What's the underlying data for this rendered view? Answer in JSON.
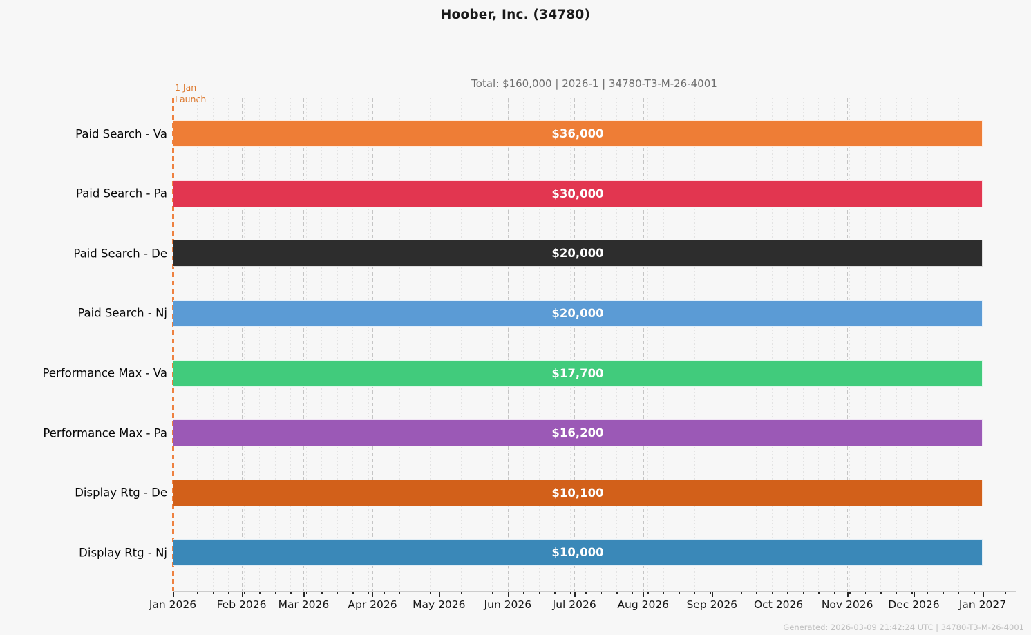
{
  "title": "Hoober, Inc. (34780)",
  "subtitle": "Total: $160,000  |  2026-1  |  34780-T3-M-26-4001",
  "annotation": {
    "line1": "1 Jan",
    "line2": "Launch",
    "color": "#dd7a30",
    "line_color": "#ee8140",
    "position_day": 0
  },
  "footer": "Generated: 2026-03-09 21:42:24 UTC  |  34780-T3-M-26-4001",
  "chart_data": {
    "type": "bar",
    "orientation": "horizontal",
    "title": "Hoober, Inc. (34780)",
    "subtitle": "Total: $160,000  |  2026-1  |  34780-T3-M-26-4001",
    "total": "$160,000",
    "period_code": "2026-1",
    "plan_code": "34780-T3-M-26-4001",
    "categories": [
      "Paid Search - Va",
      "Paid Search - Pa",
      "Paid Search - De",
      "Paid Search - Nj",
      "Performance Max - Va",
      "Performance Max - Pa",
      "Display Rtg - De",
      "Display Rtg - Nj"
    ],
    "values": [
      36000,
      30000,
      20000,
      20000,
      17700,
      16200,
      10100,
      10000
    ],
    "value_labels": [
      "$36,000",
      "$30,000",
      "$20,000",
      "$20,000",
      "$17,700",
      "$16,200",
      "$10,100",
      "$10,000"
    ],
    "bar_colors": [
      "#ee7d36",
      "#e23650",
      "#2d2d2d",
      "#5b9bd5",
      "#41cb7c",
      "#9b59b6",
      "#d2601a",
      "#3a88b8"
    ],
    "bars_start_label": "Jan 2026",
    "bars_end_label": "Jan 2027",
    "bars_span_days": 365,
    "x_ticks": [
      {
        "label": "Jan 2026",
        "day": 0
      },
      {
        "label": "Feb 2026",
        "day": 31
      },
      {
        "label": "Mar 2026",
        "day": 59
      },
      {
        "label": "Apr 2026",
        "day": 90
      },
      {
        "label": "May 2026",
        "day": 120
      },
      {
        "label": "Jun 2026",
        "day": 151
      },
      {
        "label": "Jul 2026",
        "day": 181
      },
      {
        "label": "Aug 2026",
        "day": 212
      },
      {
        "label": "Sep 2026",
        "day": 243
      },
      {
        "label": "Oct 2026",
        "day": 273
      },
      {
        "label": "Nov 2026",
        "day": 304
      },
      {
        "label": "Dec 2026",
        "day": 334
      },
      {
        "label": "Jan 2027",
        "day": 365
      }
    ],
    "minor_ticks_weekly": {
      "first_day": 4,
      "step_days": 7,
      "last_day": 378
    },
    "xlim_days": [
      0,
      380
    ],
    "grid": true,
    "legend_position": "none"
  }
}
